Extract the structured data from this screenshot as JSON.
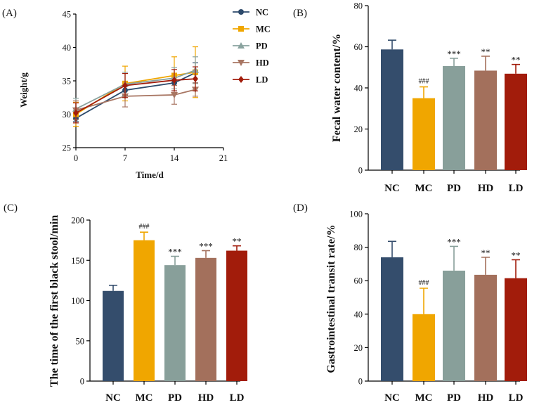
{
  "figure": {
    "panels": {
      "A": "(A)",
      "B": "(B)",
      "C": "(C)",
      "D": "(D)"
    }
  },
  "chart_data": [
    {
      "id": "A",
      "type": "line",
      "title": "",
      "xlabel": "Time/d",
      "ylabel": "Weight/g",
      "x": [
        0,
        7,
        14,
        17
      ],
      "xticks": [
        "0",
        "7",
        "14",
        "21"
      ],
      "yticks": [
        "25",
        "30",
        "35",
        "40",
        "45"
      ],
      "xlim": [
        0,
        21
      ],
      "ylim": [
        25,
        45
      ],
      "legend_position": "right",
      "series": [
        {
          "name": "NC",
          "marker": "circle",
          "color": "#2d4a6b",
          "values": [
            29.4,
            33.6,
            34.7,
            36.2
          ],
          "errors": [
            0.5,
            0.8,
            1.2,
            1.5
          ]
        },
        {
          "name": "MC",
          "marker": "square",
          "color": "#f0a600",
          "values": [
            30.0,
            34.6,
            35.8,
            36.3
          ],
          "errors": [
            1.8,
            2.6,
            2.8,
            3.8
          ]
        },
        {
          "name": "PD",
          "marker": "triangle",
          "color": "#8aa39f",
          "values": [
            30.8,
            34.5,
            35.4,
            36.6
          ],
          "errors": [
            1.6,
            1.8,
            1.6,
            2.0
          ]
        },
        {
          "name": "HD",
          "marker": "tri-down",
          "color": "#a87663",
          "values": [
            30.6,
            32.7,
            32.9,
            33.7
          ],
          "errors": [
            1.4,
            1.6,
            1.4,
            1.0
          ]
        },
        {
          "name": "LD",
          "marker": "diamond",
          "color": "#a21c0b",
          "values": [
            30.2,
            34.3,
            35.1,
            35.3
          ],
          "errors": [
            1.5,
            1.8,
            1.6,
            1.8
          ]
        }
      ]
    },
    {
      "id": "B",
      "type": "bar",
      "title": "",
      "xlabel": "",
      "ylabel": "Fecal water content/%",
      "categories": [
        "NC",
        "MC",
        "PD",
        "HD",
        "LD"
      ],
      "values": [
        58.7,
        35.0,
        50.6,
        48.4,
        46.9
      ],
      "errors": [
        4.5,
        5.5,
        3.8,
        7.0,
        4.5
      ],
      "annotations": [
        "",
        "###",
        "***",
        "**",
        "**"
      ],
      "colors": [
        "#344d6c",
        "#f0a600",
        "#889f9a",
        "#a3705c",
        "#a21c0b"
      ],
      "yticks": [
        "0",
        "20",
        "40",
        "60",
        "80"
      ],
      "ylim": [
        0,
        80
      ]
    },
    {
      "id": "C",
      "type": "bar",
      "title": "",
      "xlabel": "",
      "ylabel": "The time of the first black stool/min",
      "categories": [
        "NC",
        "MC",
        "PD",
        "HD",
        "LD"
      ],
      "values": [
        112,
        175,
        144,
        153,
        162
      ],
      "errors": [
        7,
        10,
        11,
        9,
        6
      ],
      "annotations": [
        "",
        "###",
        "***",
        "***",
        "**"
      ],
      "colors": [
        "#344d6c",
        "#f0a600",
        "#889f9a",
        "#a3705c",
        "#a21c0b"
      ],
      "yticks": [
        "0",
        "50",
        "100",
        "150",
        "200"
      ],
      "ylim": [
        0,
        200
      ]
    },
    {
      "id": "D",
      "type": "bar",
      "title": "",
      "xlabel": "",
      "ylabel": "Gastrointestinal transit rate/%",
      "categories": [
        "NC",
        "MC",
        "PD",
        "HD",
        "LD"
      ],
      "values": [
        74,
        40,
        66,
        63.5,
        61.5
      ],
      "errors": [
        9.5,
        15.5,
        14.5,
        10.5,
        11
      ],
      "annotations": [
        "",
        "###",
        "***",
        "**",
        "**"
      ],
      "colors": [
        "#344d6c",
        "#f0a600",
        "#889f9a",
        "#a3705c",
        "#a21c0b"
      ],
      "yticks": [
        "0",
        "20",
        "40",
        "60",
        "80",
        "100"
      ],
      "ylim": [
        0,
        100
      ]
    }
  ]
}
